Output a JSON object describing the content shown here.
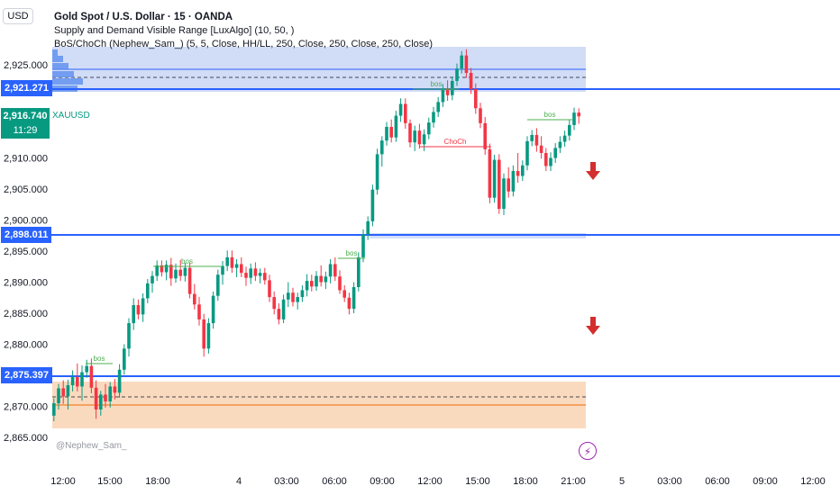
{
  "header": {
    "currency": "USD",
    "title": "Gold Spot / U.S. Dollar · 15 · OANDA",
    "indicator_1": "Supply and Demand Visible Range [LuxAlgo] (10, 50, )",
    "indicator_2": "BoS/ChoCh (Nephew_Sam_) (5, 5, Close, HH/LL, 250, Close, 250, Close, 250, Close)"
  },
  "price_axis": {
    "labels": [
      "2,925.000",
      "2,910.000",
      "2,905.000",
      "2,900.000",
      "2,895.000",
      "2,890.000",
      "2,885.000",
      "2,880.000",
      "2,870.000",
      "2,865.000"
    ],
    "tags": {
      "upper": "2,921.271",
      "middle": "2,898.011",
      "lower": "2,875.397"
    },
    "last_price": "2,916.740",
    "countdown": "11:29",
    "symbol": "XAUUSD"
  },
  "time_axis": {
    "labels": [
      "12:00",
      "15:00",
      "18:00",
      "4",
      "03:00",
      "06:00",
      "09:00",
      "12:00",
      "15:00",
      "18:00",
      "21:00",
      "5",
      "03:00",
      "06:00",
      "09:00",
      "12:00"
    ]
  },
  "annotations": {
    "bos": "bos",
    "choch": "ChoCh",
    "watermark": "@Nephew_Sam_"
  },
  "colors": {
    "up": "#089981",
    "down": "#f23645",
    "line_blue": "#2962ff",
    "supply_zone": "#c9d6f5",
    "demand_zone": "#f9d3b4",
    "bos": "#4caf50",
    "choch": "#f23645",
    "arrow": "#d32f2f"
  },
  "icons": {
    "bolt": "lightning-icon",
    "arrow": "down-arrow-icon"
  },
  "chart_data": {
    "type": "candlestick",
    "series": [
      {
        "name": "XAUUSD",
        "values": [
          [
            2868.5,
            2871.3,
            2867.6,
            2870.5
          ],
          [
            2870.5,
            2873.6,
            2869.5,
            2872.9
          ],
          [
            2872.9,
            2874.2,
            2870.4,
            2871.6
          ],
          [
            2871.6,
            2874.3,
            2869.5,
            2873.4
          ],
          [
            2873.4,
            2875.8,
            2872.4,
            2874.7
          ],
          [
            2874.7,
            2876.9,
            2872.4,
            2873.2
          ],
          [
            2873.2,
            2876.6,
            2870.9,
            2875.5
          ],
          [
            2875.5,
            2877.5,
            2874.6,
            2876.5
          ],
          [
            2876.5,
            2877.7,
            2872.1,
            2873.0
          ],
          [
            2873.0,
            2874.2,
            2868.0,
            2869.5
          ],
          [
            2869.5,
            2872.5,
            2868.5,
            2871.9
          ],
          [
            2871.9,
            2873.6,
            2869.8,
            2870.8
          ],
          [
            2870.8,
            2873.9,
            2869.8,
            2873.2
          ],
          [
            2873.2,
            2874.4,
            2871.1,
            2872.2
          ],
          [
            2872.2,
            2876.8,
            2871.4,
            2875.9
          ],
          [
            2875.9,
            2880.0,
            2875.1,
            2879.3
          ],
          [
            2879.3,
            2884.2,
            2878.0,
            2883.4
          ],
          [
            2883.4,
            2887.4,
            2882.3,
            2886.3
          ],
          [
            2886.3,
            2887.2,
            2884.0,
            2884.8
          ],
          [
            2884.8,
            2888.2,
            2883.6,
            2887.4
          ],
          [
            2887.4,
            2890.5,
            2886.6,
            2889.8
          ],
          [
            2889.8,
            2891.8,
            2888.3,
            2891.0
          ],
          [
            2891.0,
            2893.5,
            2890.2,
            2892.7
          ],
          [
            2892.7,
            2893.5,
            2890.9,
            2891.6
          ],
          [
            2891.6,
            2893.5,
            2890.3,
            2892.8
          ],
          [
            2892.8,
            2893.9,
            2889.4,
            2890.6
          ],
          [
            2890.6,
            2893.0,
            2889.9,
            2892.0
          ],
          [
            2892.0,
            2893.6,
            2890.2,
            2891.0
          ],
          [
            2891.0,
            2893.1,
            2890.1,
            2892.3
          ],
          [
            2892.3,
            2893.2,
            2887.4,
            2888.1
          ],
          [
            2888.1,
            2889.7,
            2885.6,
            2886.4
          ],
          [
            2886.4,
            2887.6,
            2883.0,
            2884.0
          ],
          [
            2884.0,
            2884.9,
            2878.0,
            2879.3
          ],
          [
            2879.3,
            2884.2,
            2878.5,
            2883.4
          ],
          [
            2883.4,
            2888.5,
            2882.5,
            2887.8
          ],
          [
            2887.8,
            2892.0,
            2887.0,
            2891.2
          ],
          [
            2891.2,
            2893.4,
            2889.6,
            2892.6
          ],
          [
            2892.6,
            2895.1,
            2891.8,
            2894.0
          ],
          [
            2894.0,
            2895.1,
            2891.5,
            2892.3
          ],
          [
            2892.3,
            2893.7,
            2890.8,
            2892.9
          ],
          [
            2892.9,
            2894.0,
            2890.8,
            2891.5
          ],
          [
            2891.5,
            2892.5,
            2889.4,
            2890.7
          ],
          [
            2890.7,
            2893.0,
            2889.7,
            2892.2
          ],
          [
            2892.2,
            2893.2,
            2890.2,
            2891.0
          ],
          [
            2891.0,
            2892.2,
            2889.8,
            2891.5
          ],
          [
            2891.5,
            2892.3,
            2889.6,
            2890.3
          ],
          [
            2890.3,
            2891.2,
            2886.8,
            2887.6
          ],
          [
            2887.6,
            2888.5,
            2884.8,
            2885.7
          ],
          [
            2885.7,
            2886.6,
            2883.2,
            2884.0
          ],
          [
            2884.0,
            2888.0,
            2883.4,
            2887.2
          ],
          [
            2887.2,
            2890.0,
            2886.0,
            2888.3
          ],
          [
            2888.3,
            2889.1,
            2886.1,
            2886.8
          ],
          [
            2886.8,
            2888.3,
            2885.6,
            2887.6
          ],
          [
            2887.6,
            2889.5,
            2886.8,
            2888.7
          ],
          [
            2888.7,
            2891.3,
            2887.7,
            2890.2
          ],
          [
            2890.2,
            2891.2,
            2888.5,
            2889.3
          ],
          [
            2889.3,
            2891.8,
            2888.6,
            2891.0
          ],
          [
            2891.0,
            2892.7,
            2889.3,
            2890.0
          ],
          [
            2890.0,
            2891.7,
            2888.9,
            2890.9
          ],
          [
            2890.9,
            2893.7,
            2889.8,
            2892.9
          ],
          [
            2892.9,
            2894.0,
            2890.2,
            2890.9
          ],
          [
            2890.9,
            2891.9,
            2888.1,
            2888.7
          ],
          [
            2888.7,
            2889.5,
            2886.8,
            2887.5
          ],
          [
            2887.5,
            2888.3,
            2884.8,
            2885.7
          ],
          [
            2885.7,
            2890.0,
            2885.0,
            2889.2
          ],
          [
            2889.2,
            2894.8,
            2888.5,
            2894.0
          ],
          [
            2894.0,
            2898.5,
            2893.2,
            2897.7
          ],
          [
            2897.7,
            2900.6,
            2896.8,
            2899.8
          ],
          [
            2899.8,
            2905.7,
            2899.0,
            2904.9
          ],
          [
            2904.9,
            2911.5,
            2904.1,
            2910.6
          ],
          [
            2910.6,
            2913.5,
            2908.6,
            2912.8
          ],
          [
            2912.8,
            2915.8,
            2912.0,
            2915.0
          ],
          [
            2915.0,
            2916.2,
            2912.5,
            2913.3
          ],
          [
            2913.3,
            2917.6,
            2912.6,
            2916.8
          ],
          [
            2916.8,
            2919.6,
            2915.8,
            2918.7
          ],
          [
            2918.7,
            2919.6,
            2914.7,
            2915.6
          ],
          [
            2915.6,
            2916.2,
            2911.7,
            2912.5
          ],
          [
            2912.5,
            2915.2,
            2911.1,
            2914.4
          ],
          [
            2914.4,
            2915.5,
            2911.5,
            2912.2
          ],
          [
            2912.2,
            2914.6,
            2911.1,
            2913.8
          ],
          [
            2913.8,
            2916.5,
            2913.0,
            2915.7
          ],
          [
            2915.7,
            2918.2,
            2914.9,
            2917.4
          ],
          [
            2917.4,
            2919.8,
            2916.6,
            2919.0
          ],
          [
            2919.0,
            2921.9,
            2918.2,
            2921.2
          ],
          [
            2921.2,
            2922.5,
            2919.2,
            2920.1
          ],
          [
            2920.1,
            2923.1,
            2919.3,
            2922.4
          ],
          [
            2922.4,
            2925.2,
            2921.6,
            2924.4
          ],
          [
            2924.4,
            2927.2,
            2923.6,
            2926.5
          ],
          [
            2926.5,
            2927.5,
            2922.9,
            2923.7
          ],
          [
            2923.7,
            2924.5,
            2920.3,
            2921.1
          ],
          [
            2921.1,
            2922.0,
            2917.1,
            2918.0
          ],
          [
            2918.0,
            2918.9,
            2914.8,
            2915.6
          ],
          [
            2915.6,
            2916.6,
            2910.5,
            2911.4
          ],
          [
            2911.4,
            2912.3,
            2902.7,
            2903.6
          ],
          [
            2903.6,
            2910.5,
            2902.8,
            2909.7
          ],
          [
            2909.7,
            2910.6,
            2901.0,
            2901.8
          ],
          [
            2901.8,
            2907.5,
            2900.8,
            2906.7
          ],
          [
            2906.7,
            2908.5,
            2903.6,
            2904.6
          ],
          [
            2904.6,
            2908.8,
            2903.8,
            2907.9
          ],
          [
            2907.9,
            2910.8,
            2906.0,
            2907.1
          ],
          [
            2907.1,
            2909.6,
            2906.3,
            2908.8
          ],
          [
            2908.8,
            2913.5,
            2908.0,
            2912.7
          ],
          [
            2912.7,
            2914.5,
            2911.9,
            2913.7
          ],
          [
            2913.7,
            2914.8,
            2911.0,
            2912.0
          ],
          [
            2912.0,
            2913.5,
            2909.9,
            2910.8
          ],
          [
            2910.8,
            2911.6,
            2907.9,
            2908.7
          ],
          [
            2908.7,
            2910.9,
            2907.9,
            2910.0
          ],
          [
            2910.0,
            2912.4,
            2909.2,
            2911.6
          ],
          [
            2911.6,
            2913.5,
            2910.8,
            2912.6
          ],
          [
            2912.6,
            2914.4,
            2911.8,
            2913.6
          ],
          [
            2913.6,
            2916.1,
            2912.8,
            2915.3
          ],
          [
            2915.3,
            2918.1,
            2914.5,
            2917.3
          ],
          [
            2917.3,
            2918.0,
            2915.5,
            2916.7
          ]
        ]
      }
    ],
    "ylim": [
      2863.0,
      2930.0
    ],
    "x_range_candles": [
      0,
      113
    ]
  }
}
